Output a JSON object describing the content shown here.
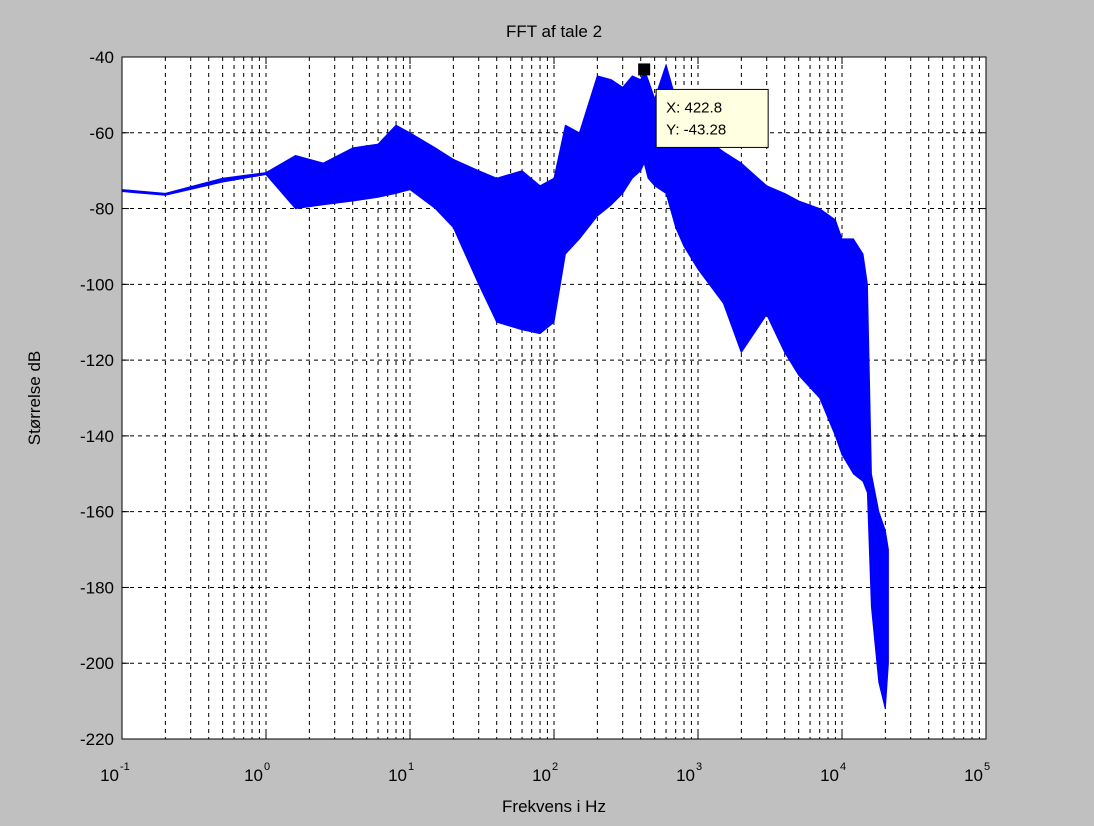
{
  "chart_data": {
    "type": "line",
    "title": "FFT af tale 2",
    "xlabel": "Frekvens i Hz",
    "ylabel": "Størrelse dB",
    "xscale": "log",
    "xlim": [
      0.1,
      100000
    ],
    "ylim": [
      -220,
      -40
    ],
    "xticks": [
      {
        "base": "10",
        "exp": "-1",
        "value": 0.1
      },
      {
        "base": "10",
        "exp": "0",
        "value": 1
      },
      {
        "base": "10",
        "exp": "1",
        "value": 10
      },
      {
        "base": "10",
        "exp": "2",
        "value": 100
      },
      {
        "base": "10",
        "exp": "3",
        "value": 1000
      },
      {
        "base": "10",
        "exp": "4",
        "value": 10000
      },
      {
        "base": "10",
        "exp": "5",
        "value": 100000
      }
    ],
    "yticks": [
      "-40",
      "-60",
      "-80",
      "-100",
      "-120",
      "-140",
      "-160",
      "-180",
      "-200",
      "-220"
    ],
    "grid": "dashed, major and minor on x",
    "series_color": "#0000ff",
    "envelope": {
      "x": [
        0.1,
        0.2,
        0.5,
        1,
        1.6,
        2.5,
        4,
        6,
        8,
        10,
        15,
        20,
        30,
        40,
        60,
        80,
        100,
        120,
        150,
        200,
        250,
        300,
        350,
        400,
        422.8,
        450,
        500,
        600,
        700,
        800,
        1000,
        1500,
        2000,
        3000,
        4000,
        5000,
        7000,
        9000,
        10000,
        12000,
        14000,
        15000,
        16000,
        18000,
        20000,
        21000
      ],
      "upper": [
        -75,
        -76,
        -72,
        -70.5,
        -66,
        -68,
        -64,
        -63,
        -58,
        -60,
        -64,
        -67,
        -70,
        -72,
        -70,
        -74,
        -72,
        -58,
        -60,
        -45,
        -46,
        -48,
        -45,
        -46,
        -43.28,
        -46,
        -51,
        -42,
        -51,
        -56,
        -60,
        -65,
        -68,
        -74,
        -76,
        -78,
        -80,
        -83,
        -88,
        -88,
        -92,
        -100,
        -150,
        -160,
        -165,
        -170
      ],
      "lower": [
        -75.5,
        -76.5,
        -73,
        -71,
        -80,
        -79,
        -78,
        -77,
        -76,
        -75,
        -80,
        -85,
        -100,
        -110,
        -112,
        -113,
        -110,
        -92,
        -88,
        -82,
        -79,
        -76,
        -72,
        -70,
        -68,
        -72,
        -74,
        -76,
        -85,
        -90,
        -96,
        -105,
        -118,
        -108,
        -118,
        -124,
        -130,
        -140,
        -145,
        -150,
        -152,
        -155,
        -185,
        -205,
        -212,
        -200
      ]
    },
    "datatip": {
      "x": 422.8,
      "y": -43.28,
      "x_label": "X: 422.8",
      "y_label": "Y: -43.28"
    }
  }
}
